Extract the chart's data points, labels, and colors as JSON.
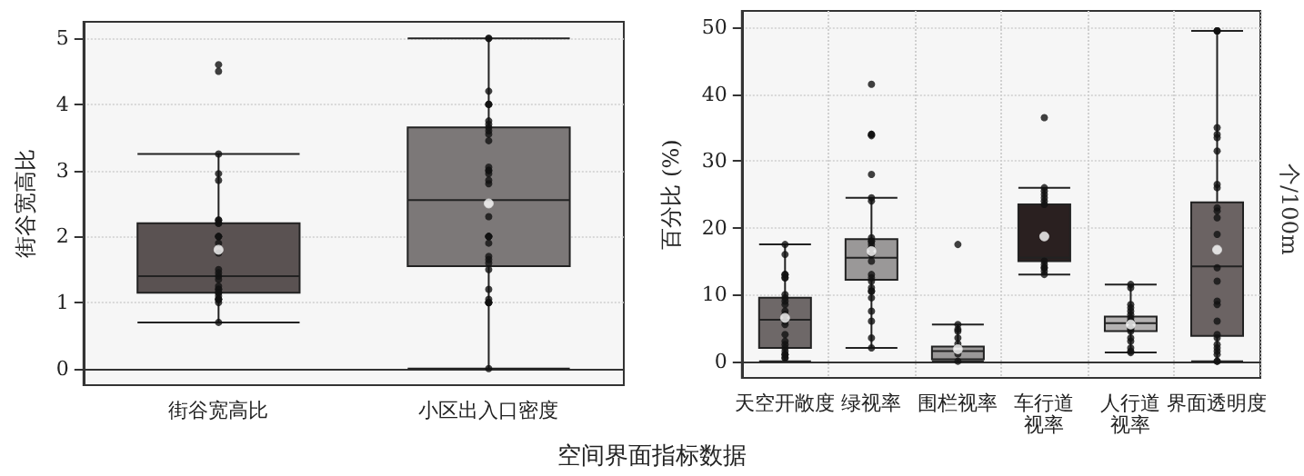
{
  "chart_data": [
    {
      "type": "box",
      "title": "空间界面指标数据",
      "ylabel": "街谷宽高比",
      "categories": [
        "街谷宽高比",
        "小区出入口密度"
      ],
      "colors": [
        "#5a5252",
        "#7c7878"
      ],
      "ylim": [
        -0.25,
        5.25
      ],
      "yticks": [
        0,
        1,
        2,
        3,
        4,
        5
      ],
      "grid": "y",
      "boxes": [
        {
          "low": 0.7,
          "q1": 1.15,
          "median": 1.4,
          "q3": 2.2,
          "high": 3.25,
          "mean": 1.8
        },
        {
          "low": 0,
          "q1": 1.55,
          "median": 2.55,
          "q3": 3.65,
          "high": 5,
          "mean": 2.5
        }
      ],
      "series": [
        {
          "type": "scatter",
          "color": "#111111",
          "marker": "circle",
          "x": [
            "街谷宽高比",
            "街谷宽高比",
            "街谷宽高比",
            "街谷宽高比",
            "街谷宽高比",
            "街谷宽高比",
            "街谷宽高比",
            "街谷宽高比",
            "街谷宽高比",
            "街谷宽高比",
            "街谷宽高比",
            "街谷宽高比",
            "街谷宽高比",
            "街谷宽高比",
            "街谷宽高比",
            "街谷宽高比",
            "街谷宽高比",
            "街谷宽高比",
            "街谷宽高比",
            "街谷宽高比",
            "街谷宽高比",
            "街谷宽高比",
            "街谷宽高比",
            "街谷宽高比",
            "街谷宽高比",
            "街谷宽高比",
            "街谷宽高比",
            "街谷宽高比",
            "街谷宽高比",
            "小区出入口密度",
            "小区出入口密度",
            "小区出入口密度",
            "小区出入口密度",
            "小区出入口密度",
            "小区出入口密度",
            "小区出入口密度",
            "小区出入口密度",
            "小区出入口密度",
            "小区出入口密度",
            "小区出入口密度",
            "小区出入口密度",
            "小区出入口密度",
            "小区出入口密度",
            "小区出入口密度",
            "小区出入口密度",
            "小区出入口密度",
            "小区出入口密度",
            "小区出入口密度",
            "小区出入口密度",
            "小区出入口密度",
            "小区出入口密度",
            "小区出入口密度",
            "小区出入口密度",
            "小区出入口密度",
            "小区出入口密度",
            "小区出入口密度",
            "小区出入口密度",
            "小区出入口密度",
            "小区出入口密度",
            "小区出入口密度",
            "小区出入口密度",
            "小区出入口密度",
            "小区出入口密度",
            "小区出入口密度"
          ],
          "values": [
            4.6,
            4.5,
            3.25,
            2.95,
            2.85,
            2.25,
            2.25,
            2.2,
            2.2,
            2.0,
            2.0,
            2.0,
            1.9,
            1.75,
            1.5,
            1.45,
            1.4,
            1.35,
            1.25,
            1.2,
            1.2,
            1.15,
            1.15,
            1.1,
            1.05,
            1.05,
            1.05,
            1.0,
            0.7,
            5,
            5,
            4.2,
            4.0,
            4.0,
            4.0,
            3.75,
            3.7,
            3.65,
            3.6,
            3.55,
            3.45,
            3.05,
            3.0,
            3.0,
            2.95,
            2.85,
            2.8,
            2.3,
            2.0,
            2.0,
            2.0,
            2.0,
            1.9,
            1.7,
            1.65,
            1.6,
            1.5,
            1.2,
            1.05,
            1.0,
            1.0,
            1.0,
            1.0,
            0
          ]
        }
      ]
    },
    {
      "type": "box",
      "ylabel": "百分比 (%)",
      "annotations": [
        "个/100m"
      ],
      "categories": [
        "天空开敞度",
        "绿视率",
        "围栏视率",
        "车行道视率",
        "人行道视率",
        "界面透明度"
      ],
      "colors": [
        "#6e6868",
        "#9a9898",
        "#9a9898",
        "#2a2020",
        "#b4b2b2",
        "#6b6363"
      ],
      "ylim": [
        -2.5,
        52.5
      ],
      "yticks": [
        0,
        10,
        20,
        30,
        40,
        50
      ],
      "grid": true,
      "boxes": [
        {
          "low": 0,
          "q1": 2,
          "median": 6.2,
          "q3": 9.5,
          "high": 17.5,
          "mean": 6.5
        },
        {
          "low": 2,
          "q1": 12.2,
          "median": 15.5,
          "q3": 18.3,
          "high": 24.5,
          "mean": 16.5
        },
        {
          "low": 0,
          "q1": 0.3,
          "median": 1.5,
          "q3": 2.2,
          "high": 5.5,
          "mean": 1.8
        },
        {
          "low": 13,
          "q1": 15,
          "median": 15.5,
          "q3": 23.5,
          "high": 26,
          "mean": 18.7
        },
        {
          "low": 1.3,
          "q1": 4.5,
          "median": 5.7,
          "q3": 6.7,
          "high": 11.5,
          "mean": 5.5
        },
        {
          "low": 0,
          "q1": 3.8,
          "median": 14.2,
          "q3": 23.8,
          "high": 49.5,
          "mean": 16.7
        }
      ],
      "series": [
        {
          "type": "scatter",
          "color": "#111111",
          "marker": "circle",
          "x": [
            "天空开敞度",
            "天空开敞度",
            "天空开敞度",
            "天空开敞度",
            "天空开敞度",
            "天空开敞度",
            "天空开敞度",
            "天空开敞度",
            "天空开敞度",
            "天空开敞度",
            "天空开敞度",
            "天空开敞度",
            "天空开敞度",
            "天空开敞度",
            "天空开敞度",
            "天空开敞度",
            "天空开敞度",
            "天空开敞度",
            "天空开敞度",
            "天空开敞度",
            "天空开敞度",
            "天空开敞度",
            "天空开敞度",
            "绿视率",
            "绿视率",
            "绿视率",
            "绿视率",
            "绿视率",
            "绿视率",
            "绿视率",
            "绿视率",
            "绿视率",
            "绿视率",
            "绿视率",
            "绿视率",
            "绿视率",
            "绿视率",
            "绿视率",
            "绿视率",
            "绿视率",
            "绿视率",
            "绿视率",
            "绿视率",
            "绿视率",
            "绿视率",
            "绿视率",
            "绿视率",
            "绿视率",
            "围栏视率",
            "围栏视率",
            "围栏视率",
            "围栏视率",
            "围栏视率",
            "围栏视率",
            "围栏视率",
            "围栏视率",
            "车行道视率",
            "车行道视率",
            "车行道视率",
            "车行道视率",
            "车行道视率",
            "车行道视率",
            "车行道视率",
            "车行道视率",
            "车行道视率",
            "车行道视率",
            "车行道视率",
            "车行道视率",
            "车行道视率",
            "人行道视率",
            "人行道视率",
            "人行道视率",
            "人行道视率",
            "人行道视率",
            "人行道视率",
            "人行道视率",
            "人行道视率",
            "人行道视率",
            "人行道视率",
            "人行道视率",
            "人行道视率",
            "人行道视率",
            "人行道视率",
            "人行道视率",
            "人行道视率",
            "人行道视率",
            "界面透明度",
            "界面透明度",
            "界面透明度",
            "界面透明度",
            "界面透明度",
            "界面透明度",
            "界面透明度",
            "界面透明度",
            "界面透明度",
            "界面透明度",
            "界面透明度",
            "界面透明度",
            "界面透明度",
            "界面透明度",
            "界面透明度",
            "界面透明度",
            "界面透明度",
            "界面透明度",
            "界面透明度",
            "界面透明度",
            "界面透明度",
            "界面透明度",
            "界面透明度",
            "界面透明度",
            "界面透明度",
            "界面透明度"
          ],
          "values": [
            17.5,
            16,
            13,
            13,
            12.5,
            12.5,
            10,
            9.5,
            9,
            8.5,
            7,
            7.5,
            6,
            5.5,
            4,
            3,
            2.5,
            2,
            1.5,
            1,
            1,
            0.5,
            0.5,
            41.5,
            34,
            34,
            33.8,
            28,
            24.5,
            24,
            18.5,
            18,
            18,
            17.5,
            17,
            16,
            15,
            13,
            12.5,
            12,
            11,
            10.5,
            10.5,
            9.5,
            7.5,
            6,
            3.5,
            2,
            17.5,
            5.5,
            4.8,
            4.5,
            3.5,
            2.6,
            1.1,
            0,
            36.5,
            26,
            25.5,
            25,
            24.5,
            24,
            23.5,
            15,
            14.5,
            14,
            14,
            13.5,
            13,
            11.5,
            11,
            8.5,
            8,
            7.5,
            7,
            6.5,
            6,
            6,
            4.8,
            5,
            4.5,
            3.5,
            3,
            2,
            1.5,
            1.3,
            49.5,
            49.5,
            49.5,
            35,
            34,
            33.5,
            31.5,
            26.5,
            26,
            23,
            22.5,
            21.5,
            19,
            14,
            12,
            9,
            8.5,
            6,
            4,
            3.5,
            2.5,
            2,
            1.5,
            1,
            0,
            0
          ]
        }
      ]
    }
  ]
}
